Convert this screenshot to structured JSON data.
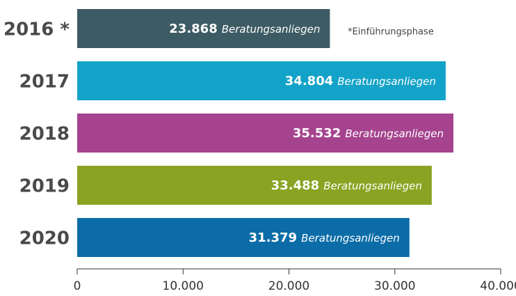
{
  "chart_data": {
    "type": "hbar",
    "categories": [
      "2016 *",
      "2017",
      "2018",
      "2019",
      "2020"
    ],
    "values": [
      23868,
      34804,
      35532,
      33488,
      31379
    ],
    "value_labels": [
      "23.868",
      "34.804",
      "35.532",
      "33.488",
      "31.379"
    ],
    "value_unit": "Beratungsanliegen",
    "colors": [
      "#3d5b64",
      "#14a3c8",
      "#a5438f",
      "#8aa322",
      "#0c6ca7"
    ],
    "annotation": "*Einführungsphase",
    "xlim": [
      0,
      40000
    ],
    "xticks": [
      0,
      {
        "value": 10000,
        "label": "10.000"
      },
      {
        "value": 20000,
        "label": "20.000"
      },
      {
        "value": 30000,
        "label": "30.000"
      },
      {
        "value": 40000,
        "label": "40.000"
      }
    ]
  }
}
